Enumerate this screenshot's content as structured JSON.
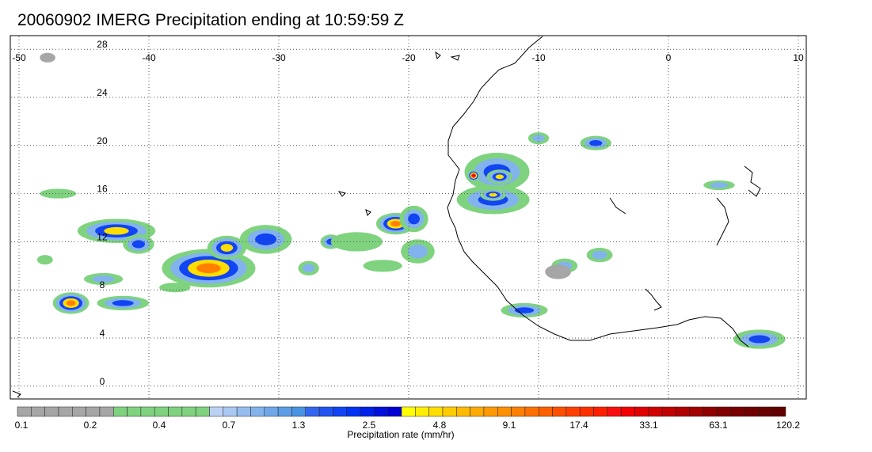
{
  "title": "20060902 IMERG Precipitation ending at 10:59:59 Z",
  "map": {
    "lon_range": [
      -50,
      10
    ],
    "lat_range": [
      -1,
      29
    ],
    "lon_ticks": [
      -50,
      -40,
      -30,
      -20,
      -10,
      0,
      10
    ],
    "lat_ticks": [
      0,
      4,
      8,
      12,
      16,
      20,
      24,
      28
    ],
    "lon_tick_labels": [
      "-50",
      "-40",
      "-30",
      "-20",
      "-10",
      "0",
      "10"
    ],
    "lat_tick_labels": [
      "0",
      "4",
      "8",
      "12",
      "16",
      "20",
      "24",
      "28"
    ],
    "grid": "dotted"
  },
  "colorbar": {
    "label": "Precipitation rate (mm/hr)",
    "tick_labels": [
      "0.1",
      "0.2",
      "0.4",
      "0.7",
      "1.3",
      "2.5",
      "4.8",
      "9.1",
      "17.4",
      "33.1",
      "63.1",
      "120.2"
    ],
    "colors": [
      "#a6a6a6",
      "#a6a6a6",
      "#a6a6a6",
      "#a6a6a6",
      "#a6a6a6",
      "#a6a6a6",
      "#a6a6a6",
      "#7fd37f",
      "#7fd37f",
      "#7fd37f",
      "#7fd37f",
      "#7fd37f",
      "#7fd37f",
      "#7fd37f",
      "#bcd2f5",
      "#a9c8f2",
      "#96bdef",
      "#83b3ec",
      "#6fa8e9",
      "#5c9de6",
      "#4993e3",
      "#3366ee",
      "#2255f0",
      "#1144f2",
      "#0033f4",
      "#0022e8",
      "#0011dd",
      "#0000d0",
      "#ffff00",
      "#ffee00",
      "#ffdd00",
      "#ffcc00",
      "#ffbb00",
      "#ffaa00",
      "#ff9900",
      "#ff9000",
      "#ff8000",
      "#ff7000",
      "#ff6000",
      "#ff5000",
      "#ff4000",
      "#ff3000",
      "#ff2000",
      "#f81010",
      "#f00000",
      "#e00000",
      "#d00000",
      "#c00000",
      "#b00000",
      "#a00000",
      "#900000",
      "#800000",
      "#780000",
      "#700000",
      "#680000",
      "#600000"
    ]
  },
  "precip_cells": [
    {
      "lon": -42.5,
      "lat": 12.9,
      "rx": 3.0,
      "ry": 1.0,
      "level": "yellow"
    },
    {
      "lon": -40.8,
      "lat": 11.8,
      "rx": 1.2,
      "ry": 0.8,
      "level": "blue"
    },
    {
      "lon": -35.4,
      "lat": 9.8,
      "rx": 3.6,
      "ry": 1.6,
      "level": "orange"
    },
    {
      "lon": -34.0,
      "lat": 11.5,
      "rx": 1.5,
      "ry": 1.0,
      "level": "yellow"
    },
    {
      "lon": -31.0,
      "lat": 12.2,
      "rx": 2.0,
      "ry": 1.2,
      "level": "blue"
    },
    {
      "lon": -46.0,
      "lat": 6.9,
      "rx": 1.4,
      "ry": 0.9,
      "level": "orange"
    },
    {
      "lon": -42.0,
      "lat": 6.9,
      "rx": 2.0,
      "ry": 0.6,
      "level": "blue"
    },
    {
      "lon": -43.5,
      "lat": 8.9,
      "rx": 1.5,
      "ry": 0.5,
      "level": "lightblue"
    },
    {
      "lon": -21.0,
      "lat": 13.5,
      "rx": 1.5,
      "ry": 0.9,
      "level": "orange"
    },
    {
      "lon": -19.6,
      "lat": 13.9,
      "rx": 1.1,
      "ry": 1.1,
      "level": "blue"
    },
    {
      "lon": -19.3,
      "lat": 11.2,
      "rx": 1.3,
      "ry": 1.0,
      "level": "lightblue"
    },
    {
      "lon": -13.2,
      "lat": 17.8,
      "rx": 2.5,
      "ry": 1.6,
      "level": "blue"
    },
    {
      "lon": -13.5,
      "lat": 15.5,
      "rx": 2.8,
      "ry": 1.2,
      "level": "blue"
    },
    {
      "lon": -15.0,
      "lat": 17.5,
      "rx": 0.5,
      "ry": 0.5,
      "level": "red"
    },
    {
      "lon": -13.5,
      "lat": 15.9,
      "rx": 1.0,
      "ry": 0.5,
      "level": "yellow"
    },
    {
      "lon": -13.0,
      "lat": 17.4,
      "rx": 1.0,
      "ry": 0.6,
      "level": "yellow"
    },
    {
      "lon": -11.1,
      "lat": 6.3,
      "rx": 1.8,
      "ry": 0.6,
      "level": "blue"
    },
    {
      "lon": -5.6,
      "lat": 20.2,
      "rx": 1.2,
      "ry": 0.6,
      "level": "blue"
    },
    {
      "lon": 7.0,
      "lat": 3.9,
      "rx": 2.0,
      "ry": 0.8,
      "level": "blue"
    },
    {
      "lon": -26.0,
      "lat": 12.0,
      "rx": 0.8,
      "ry": 0.6,
      "level": "blue"
    },
    {
      "lon": -27.7,
      "lat": 9.8,
      "rx": 0.8,
      "ry": 0.6,
      "level": "lightblue"
    },
    {
      "lon": -8.0,
      "lat": 10.0,
      "rx": 1.0,
      "ry": 0.6,
      "level": "lightblue"
    },
    {
      "lon": -5.3,
      "lat": 10.9,
      "rx": 1.0,
      "ry": 0.6,
      "level": "lightblue"
    },
    {
      "lon": 3.9,
      "lat": 16.7,
      "rx": 1.2,
      "ry": 0.4,
      "level": "lightblue"
    },
    {
      "lon": -10.0,
      "lat": 20.6,
      "rx": 0.8,
      "ry": 0.5,
      "level": "lightblue"
    },
    {
      "lon": -47.0,
      "lat": 16.0,
      "rx": 1.4,
      "ry": 0.4,
      "level": "green"
    },
    {
      "lon": -24.0,
      "lat": 12.0,
      "rx": 2.0,
      "ry": 0.8,
      "level": "green"
    },
    {
      "lon": -22.0,
      "lat": 10.0,
      "rx": 1.5,
      "ry": 0.5,
      "level": "green"
    },
    {
      "lon": -8.5,
      "lat": 9.5,
      "rx": 1.0,
      "ry": 0.6,
      "level": "gray"
    },
    {
      "lon": -47.8,
      "lat": 27.3,
      "rx": 0.6,
      "ry": 0.4,
      "level": "gray"
    },
    {
      "lon": -48.0,
      "lat": 10.5,
      "rx": 0.6,
      "ry": 0.4,
      "level": "green"
    },
    {
      "lon": -38.0,
      "lat": 8.2,
      "rx": 1.2,
      "ry": 0.4,
      "level": "green"
    }
  ]
}
